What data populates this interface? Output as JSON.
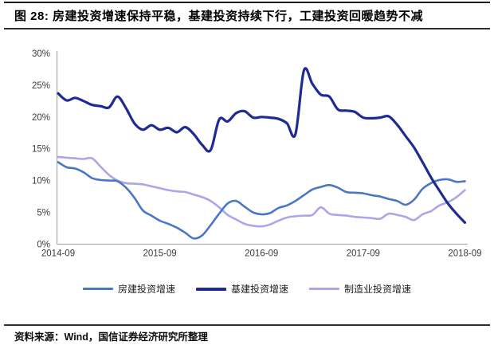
{
  "header": {
    "title": "图 28:  房建投资增速保持平稳，基建投资持续下行，工建投资回暖趋势不减"
  },
  "footer": {
    "source": "资料来源：Wind，国信证券经济研究所整理"
  },
  "colors": {
    "axis_line": "#b0b0b0",
    "tick_text": "#3a3a3a",
    "divider": "#2e2e2e",
    "background": "#ffffff"
  },
  "chart_data": {
    "type": "line",
    "title": "",
    "xlabel": "",
    "ylabel": "",
    "x_start": "2014-09",
    "x_end": "2018-09",
    "x_interval": "monthly",
    "x_tick_labels": [
      "2014-09",
      "2015-09",
      "2016-09",
      "2017-09",
      "2018-09"
    ],
    "y_tick_labels": [
      "0%",
      "5%",
      "10%",
      "15%",
      "20%",
      "25%",
      "30%"
    ],
    "y_ticks": [
      0,
      5,
      10,
      15,
      20,
      25,
      30
    ],
    "ylim": [
      0,
      30
    ],
    "y_unit": "%",
    "grid": false,
    "legend_position": "bottom",
    "series": [
      {
        "name": "房建投资增速",
        "color": "#4a76c4",
        "stroke_width": 2.6,
        "values": [
          12.9,
          12.1,
          11.9,
          11.3,
          10.4,
          10.1,
          10.0,
          9.9,
          8.9,
          7.3,
          5.3,
          4.5,
          3.7,
          3.2,
          2.6,
          1.8,
          0.9,
          1.4,
          3.0,
          4.8,
          6.4,
          6.8,
          5.9,
          5.0,
          4.7,
          4.9,
          5.7,
          6.1,
          6.8,
          7.7,
          8.6,
          9.0,
          9.3,
          8.9,
          8.2,
          8.1,
          8.0,
          7.7,
          7.5,
          7.1,
          6.8,
          6.2,
          7.0,
          8.7,
          9.6,
          10.1,
          10.2,
          9.8,
          9.9
        ]
      },
      {
        "name": "基建投资增速",
        "color": "#1f2a94",
        "stroke_width": 3.2,
        "values": [
          23.7,
          22.6,
          23.0,
          22.5,
          21.9,
          21.7,
          21.5,
          23.2,
          21.4,
          19.0,
          18.0,
          18.7,
          18.0,
          18.3,
          17.6,
          18.4,
          17.3,
          15.6,
          14.8,
          19.6,
          19.3,
          20.6,
          20.9,
          19.9,
          20.0,
          19.9,
          19.7,
          19.0,
          17.3,
          27.3,
          25.2,
          23.5,
          23.2,
          21.2,
          21.0,
          20.8,
          19.9,
          19.8,
          19.9,
          20.1,
          18.8,
          17.0,
          15.2,
          12.9,
          10.5,
          8.4,
          6.4,
          4.8,
          3.4
        ]
      },
      {
        "name": "制造业投资增速",
        "color": "#aba6ea",
        "stroke_width": 2.6,
        "values": [
          13.7,
          13.6,
          13.5,
          13.4,
          13.5,
          12.2,
          10.9,
          10.0,
          9.6,
          9.5,
          9.4,
          9.1,
          8.8,
          8.5,
          8.3,
          8.2,
          7.8,
          7.4,
          6.8,
          5.8,
          4.6,
          3.9,
          3.2,
          2.9,
          2.8,
          3.1,
          3.7,
          4.2,
          4.4,
          4.5,
          4.6,
          5.8,
          4.8,
          4.6,
          4.5,
          4.3,
          4.2,
          4.1,
          4.0,
          4.8,
          4.6,
          4.3,
          3.8,
          4.7,
          5.2,
          6.1,
          6.6,
          7.4,
          8.5
        ]
      }
    ]
  }
}
